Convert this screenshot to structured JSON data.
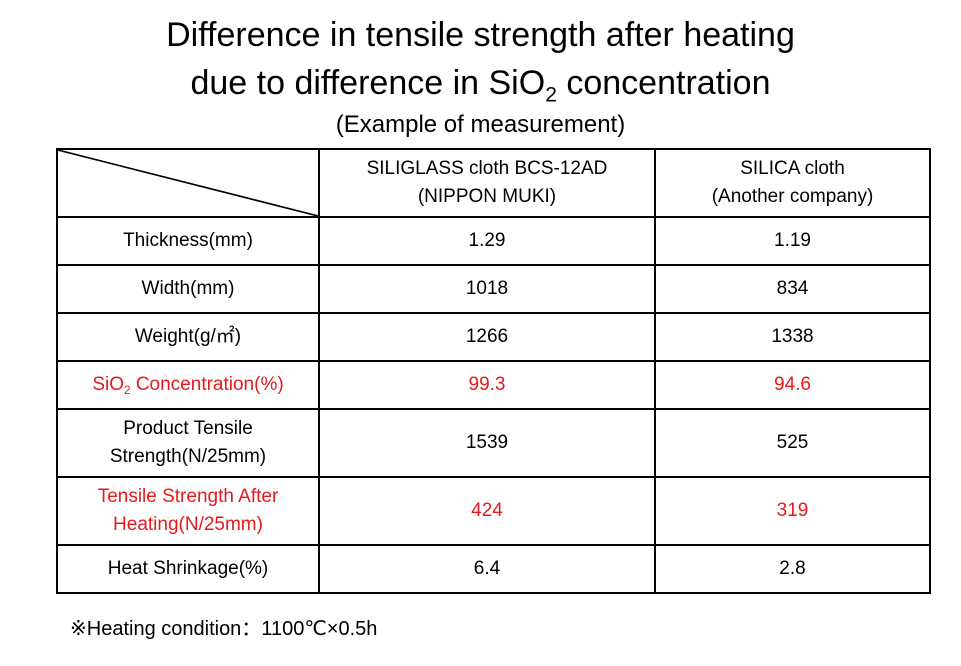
{
  "title": {
    "line1": "Difference in tensile strength after heating",
    "line2_pre": "due to difference in SiO",
    "line2_sub": "2",
    "line2_post": " concentration"
  },
  "subtitle": "(Example of measurement)",
  "table": {
    "columns": [
      {
        "line1": "SILIGLASS cloth BCS-12AD",
        "line2": "(NIPPON MUKI)"
      },
      {
        "line1": "SILICA cloth",
        "line2": "(Another company)"
      }
    ],
    "rows": {
      "thickness": {
        "label": "Thickness(mm)",
        "values": [
          "1.29",
          "1.19"
        ]
      },
      "width": {
        "label": "Width(mm)",
        "values": [
          "1018",
          "834"
        ]
      },
      "weight": {
        "label": "Weight(g/㎡)",
        "values": [
          "1266",
          "1338"
        ]
      },
      "sio2": {
        "label_pre": "SiO",
        "label_sub": "2",
        "label_post": " Concentration(%)",
        "values": [
          "99.3",
          "94.6"
        ]
      },
      "product_tensile": {
        "label_line1": "Product Tensile",
        "label_line2": "Strength(N/25mm)",
        "values": [
          "1539",
          "525"
        ]
      },
      "tensile_after_heating": {
        "label_line1": "Tensile Strength After",
        "label_line2": "Heating(N/25mm)",
        "values": [
          "424",
          "319"
        ]
      },
      "heat_shrinkage": {
        "label": "Heat Shrinkage(%)",
        "values": [
          "6.4",
          "2.8"
        ]
      }
    },
    "highlight_color": "#e8191d"
  },
  "note": "※Heating condition：1100℃×0.5h"
}
